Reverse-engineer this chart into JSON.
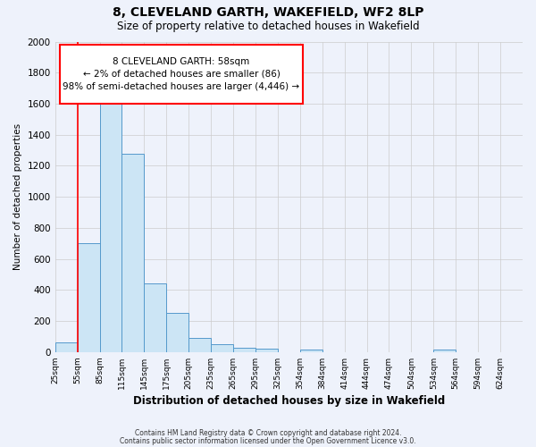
{
  "title": "8, CLEVELAND GARTH, WAKEFIELD, WF2 8LP",
  "subtitle": "Size of property relative to detached houses in Wakefield",
  "xlabel": "Distribution of detached houses by size in Wakefield",
  "ylabel": "Number of detached properties",
  "bar_values": [
    65,
    700,
    1630,
    1280,
    440,
    250,
    90,
    50,
    30,
    20,
    0,
    15,
    0,
    0,
    0,
    0,
    0,
    15,
    0,
    0,
    0
  ],
  "bin_labels": [
    "25sqm",
    "55sqm",
    "85sqm",
    "115sqm",
    "145sqm",
    "175sqm",
    "205sqm",
    "235sqm",
    "265sqm",
    "295sqm",
    "325sqm",
    "354sqm",
    "384sqm",
    "414sqm",
    "444sqm",
    "474sqm",
    "504sqm",
    "534sqm",
    "564sqm",
    "594sqm",
    "624sqm"
  ],
  "bar_color": "#cce5f5",
  "bar_edge_color": "#5599cc",
  "background_color": "#eef2fb",
  "grid_color": "#cccccc",
  "red_line_x": 1.0,
  "annotation_line1": "8 CLEVELAND GARTH: 58sqm",
  "annotation_line2": "← 2% of detached houses are smaller (86)",
  "annotation_line3": "98% of semi-detached houses are larger (4,446) →",
  "ylim": [
    0,
    2000
  ],
  "yticks": [
    0,
    200,
    400,
    600,
    800,
    1000,
    1200,
    1400,
    1600,
    1800,
    2000
  ],
  "footer_line1": "Contains HM Land Registry data © Crown copyright and database right 2024.",
  "footer_line2": "Contains public sector information licensed under the Open Government Licence v3.0."
}
